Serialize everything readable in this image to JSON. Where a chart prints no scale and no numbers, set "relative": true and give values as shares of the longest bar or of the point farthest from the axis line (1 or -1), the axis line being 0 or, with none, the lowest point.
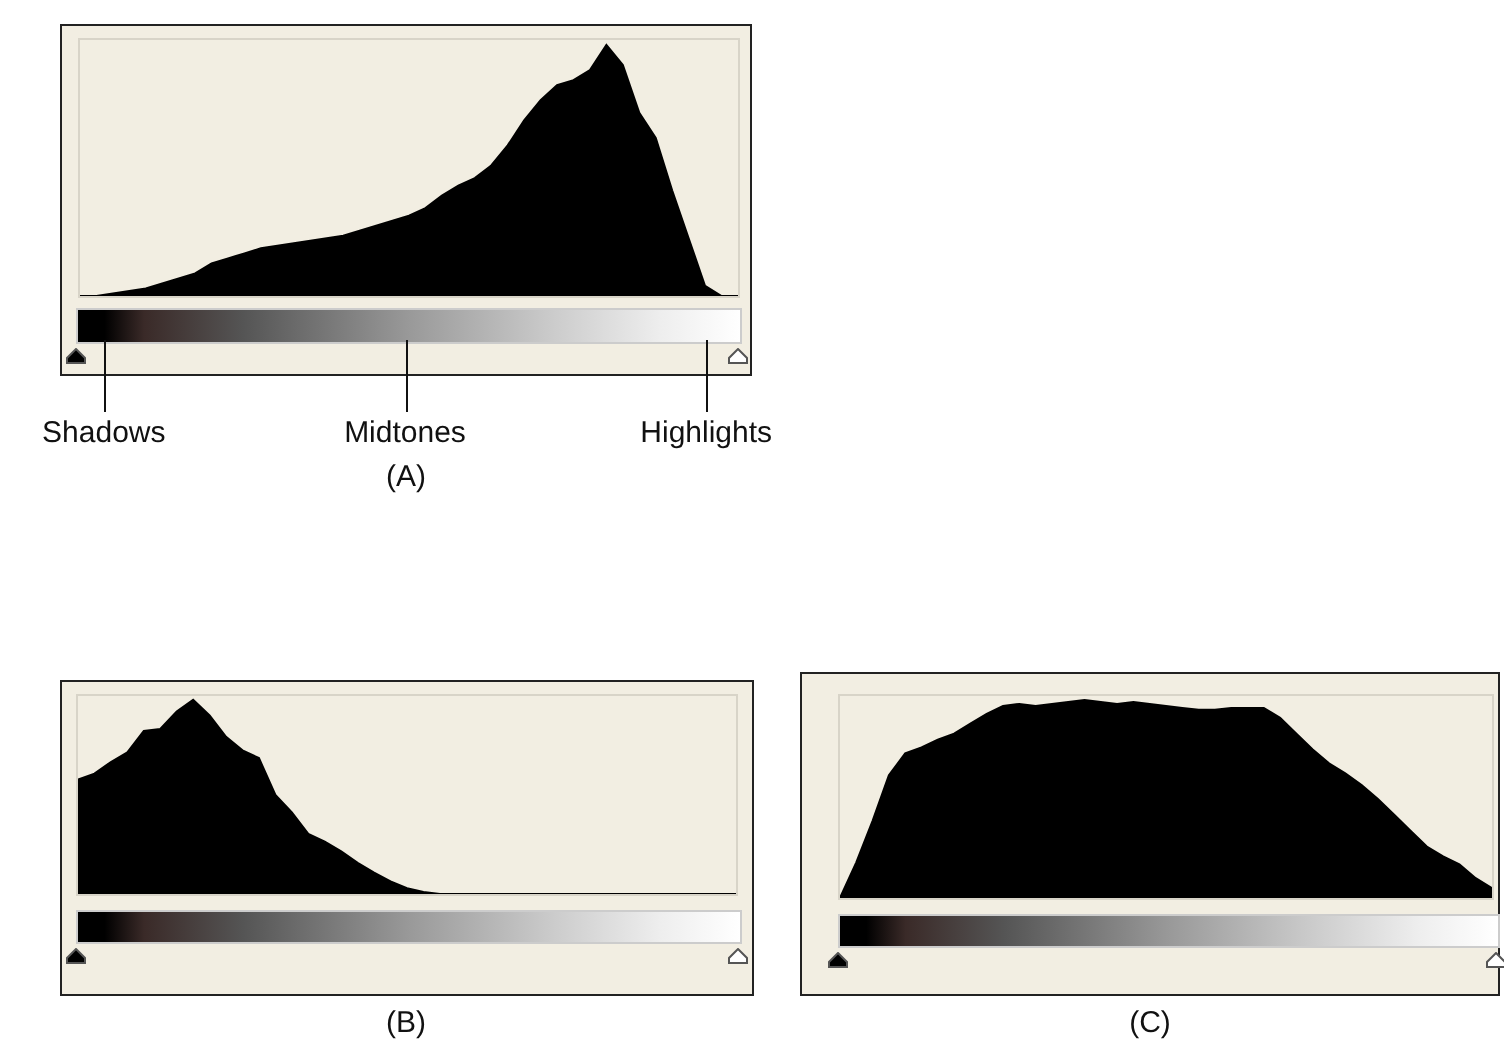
{
  "chart_data": [
    {
      "type": "area",
      "title": "(A)",
      "relative": true,
      "color": "#000000",
      "annotations": [
        "Shadows",
        "Midtones",
        "Highlights"
      ],
      "categories": [
        null,
        null,
        null,
        null,
        null,
        null,
        null,
        null,
        null,
        null,
        null,
        null,
        null,
        null,
        null,
        null,
        null,
        null,
        null,
        null,
        null,
        null,
        null,
        null,
        null,
        null,
        null,
        null,
        null,
        null,
        null,
        null,
        null,
        null,
        null,
        null,
        null,
        null,
        null,
        null,
        null
      ],
      "values": [
        0,
        0,
        0.01,
        0.02,
        0.03,
        0.05,
        0.07,
        0.09,
        0.13,
        0.15,
        0.17,
        0.19,
        0.2,
        0.21,
        0.22,
        0.23,
        0.24,
        0.26,
        0.28,
        0.3,
        0.32,
        0.35,
        0.4,
        0.44,
        0.47,
        0.52,
        0.6,
        0.7,
        0.78,
        0.84,
        0.86,
        0.9,
        1,
        0.92,
        0.73,
        0.63,
        0.42,
        0.23,
        0.04,
        0,
        0
      ]
    },
    {
      "type": "area",
      "title": "(B)",
      "relative": true,
      "color": "#000000",
      "categories": [
        null,
        null,
        null,
        null,
        null,
        null,
        null,
        null,
        null,
        null,
        null,
        null,
        null,
        null,
        null,
        null,
        null,
        null,
        null,
        null,
        null,
        null,
        null,
        null,
        null,
        null,
        null,
        null,
        null,
        null,
        null,
        null,
        null,
        null,
        null,
        null,
        null,
        null,
        null,
        null,
        null
      ],
      "values": [
        0.59,
        0.62,
        0.68,
        0.73,
        0.84,
        0.85,
        0.94,
        1,
        0.92,
        0.81,
        0.74,
        0.7,
        0.51,
        0.42,
        0.31,
        0.27,
        0.22,
        0.16,
        0.11,
        0.065,
        0.03,
        0.01,
        0,
        0,
        0,
        0,
        0,
        0,
        0,
        0,
        0,
        0,
        0,
        0,
        0,
        0,
        0,
        0,
        0,
        0,
        0
      ]
    },
    {
      "type": "area",
      "title": "(C)",
      "relative": true,
      "color": "#000000",
      "categories": [
        null,
        null,
        null,
        null,
        null,
        null,
        null,
        null,
        null,
        null,
        null,
        null,
        null,
        null,
        null,
        null,
        null,
        null,
        null,
        null,
        null,
        null,
        null,
        null,
        null,
        null,
        null,
        null,
        null,
        null,
        null,
        null,
        null,
        null,
        null,
        null,
        null,
        null,
        null,
        null,
        null
      ],
      "values": [
        0,
        0.18,
        0.39,
        0.62,
        0.73,
        0.76,
        0.8,
        0.83,
        0.88,
        0.93,
        0.97,
        0.98,
        0.97,
        0.98,
        0.99,
        1,
        0.99,
        0.98,
        0.99,
        0.98,
        0.97,
        0.96,
        0.95,
        0.95,
        0.96,
        0.96,
        0.96,
        0.91,
        0.83,
        0.75,
        0.68,
        0.63,
        0.57,
        0.5,
        0.42,
        0.34,
        0.26,
        0.21,
        0.17,
        0.1,
        0.05
      ]
    }
  ]
}
